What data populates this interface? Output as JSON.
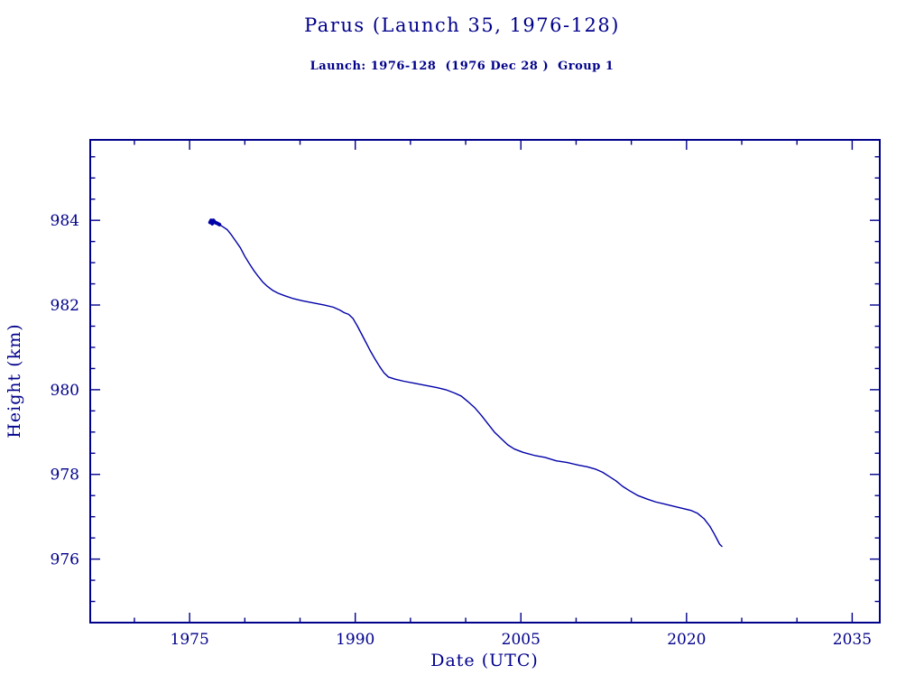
{
  "theme": {
    "accent": "#00008B",
    "line_color": "#0000A8",
    "background": "#FFFFFF"
  },
  "chart_data": {
    "type": "line",
    "title": "Parus (Launch 35, 1976-128)",
    "subtitle": "Launch: 1976-128  (1976 Dec 28 )  Group 1",
    "xlabel": "Date (UTC)",
    "ylabel": "Height (km)",
    "xlim": [
      1966,
      2037.5
    ],
    "ylim": [
      974.5,
      985.9
    ],
    "xticks": [
      1975,
      1990,
      2005,
      2020,
      2035
    ],
    "yticks": [
      976,
      978,
      980,
      982,
      984
    ],
    "x_minor_step": 5,
    "y_minor_step": 0.5,
    "grid": false,
    "legend": null,
    "series": [
      {
        "name": "orbital-height",
        "dense_until": 1977.7,
        "points": [
          [
            1976.85,
            983.95
          ],
          [
            1976.95,
            984.0
          ],
          [
            1977.05,
            983.92
          ],
          [
            1977.15,
            984.0
          ],
          [
            1977.3,
            983.95
          ],
          [
            1977.5,
            983.93
          ],
          [
            1977.7,
            983.9
          ],
          [
            1978.0,
            983.85
          ],
          [
            1978.4,
            983.78
          ],
          [
            1978.8,
            983.65
          ],
          [
            1979.2,
            983.5
          ],
          [
            1979.6,
            983.35
          ],
          [
            1980.0,
            983.15
          ],
          [
            1980.4,
            982.98
          ],
          [
            1980.8,
            982.82
          ],
          [
            1981.2,
            982.68
          ],
          [
            1981.6,
            982.55
          ],
          [
            1982.0,
            982.45
          ],
          [
            1982.5,
            982.35
          ],
          [
            1983.0,
            982.28
          ],
          [
            1983.6,
            982.22
          ],
          [
            1984.4,
            982.15
          ],
          [
            1985.2,
            982.1
          ],
          [
            1986.2,
            982.05
          ],
          [
            1987.2,
            982.0
          ],
          [
            1988.0,
            981.95
          ],
          [
            1988.6,
            981.88
          ],
          [
            1989.0,
            981.82
          ],
          [
            1989.4,
            981.78
          ],
          [
            1989.8,
            981.68
          ],
          [
            1990.2,
            981.5
          ],
          [
            1990.6,
            981.3
          ],
          [
            1991.0,
            981.1
          ],
          [
            1991.4,
            980.9
          ],
          [
            1991.8,
            980.72
          ],
          [
            1992.2,
            980.55
          ],
          [
            1992.6,
            980.4
          ],
          [
            1993.0,
            980.3
          ],
          [
            1993.6,
            980.25
          ],
          [
            1994.4,
            980.2
          ],
          [
            1995.4,
            980.15
          ],
          [
            1996.4,
            980.1
          ],
          [
            1997.4,
            980.05
          ],
          [
            1998.2,
            980.0
          ],
          [
            1999.0,
            979.92
          ],
          [
            1999.6,
            979.85
          ],
          [
            2000.2,
            979.72
          ],
          [
            2000.8,
            979.58
          ],
          [
            2001.4,
            979.4
          ],
          [
            2002.0,
            979.2
          ],
          [
            2002.6,
            979.0
          ],
          [
            2003.2,
            978.85
          ],
          [
            2003.8,
            978.7
          ],
          [
            2004.4,
            978.6
          ],
          [
            2005.2,
            978.52
          ],
          [
            2006.2,
            978.45
          ],
          [
            2007.2,
            978.4
          ],
          [
            2008.2,
            978.32
          ],
          [
            2009.2,
            978.28
          ],
          [
            2010.2,
            978.22
          ],
          [
            2011.0,
            978.18
          ],
          [
            2011.8,
            978.12
          ],
          [
            2012.4,
            978.05
          ],
          [
            2013.0,
            977.95
          ],
          [
            2013.6,
            977.85
          ],
          [
            2014.2,
            977.72
          ],
          [
            2014.8,
            977.62
          ],
          [
            2015.6,
            977.5
          ],
          [
            2016.4,
            977.42
          ],
          [
            2017.2,
            977.35
          ],
          [
            2018.0,
            977.3
          ],
          [
            2018.8,
            977.25
          ],
          [
            2019.6,
            977.2
          ],
          [
            2020.4,
            977.15
          ],
          [
            2021.0,
            977.08
          ],
          [
            2021.6,
            976.95
          ],
          [
            2022.1,
            976.78
          ],
          [
            2022.5,
            976.6
          ],
          [
            2022.8,
            976.45
          ],
          [
            2023.0,
            976.35
          ],
          [
            2023.2,
            976.3
          ]
        ]
      }
    ]
  }
}
